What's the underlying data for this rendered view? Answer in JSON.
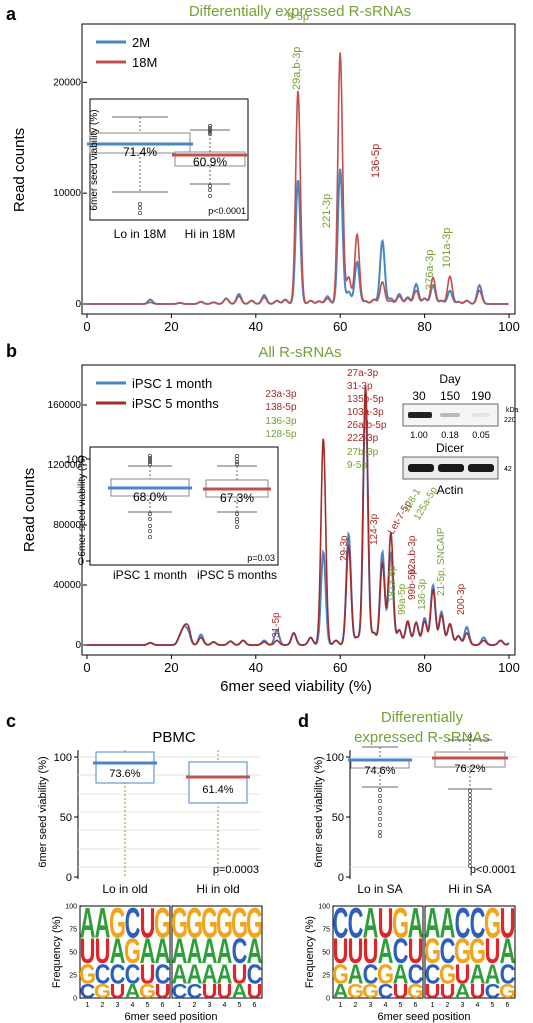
{
  "colors": {
    "blue": "#4a86c5",
    "red": "#c0504d",
    "darkred": "#a52a2a",
    "green": "#77a032",
    "grid": "#dddddd",
    "axis": "#000000",
    "logo_A": "#2e9e3b",
    "logo_C": "#2b5fbf",
    "logo_G": "#f2a51a",
    "logo_U": "#e0242a"
  },
  "panels": {
    "a": {
      "letter": "a",
      "title": "Differentially expressed R-sRNAs",
      "ylabel": "Read counts"
    },
    "b": {
      "letter": "b",
      "title": "All R-sRNAs",
      "ylabel": "Read counts",
      "xlabel": "6mer seed viability (%)"
    },
    "c": {
      "letter": "c",
      "title": "PBMC",
      "ylabel": "6mer seed viability (%)",
      "logo_ylabel": "Frequency (%)",
      "logo_xlabel": "6mer seed position"
    },
    "d": {
      "letter": "d",
      "title_line1": "Differentially",
      "title_line2": "expressed R-sRNAs",
      "ylabel": "6mer seed viability (%)",
      "logo_ylabel": "Frequency (%)",
      "logo_xlabel": "6mer seed position"
    }
  },
  "western": {
    "day_label": "Day",
    "days": [
      "30",
      "150",
      "190"
    ],
    "kda_label": "kDa",
    "marker_dicer": "220",
    "marker_actin": "42",
    "quant": [
      "1.00",
      "0.18",
      "0.05"
    ],
    "dicer_label": "Dicer",
    "actin_label": "Actin"
  },
  "chart_data": [
    {
      "id": "a-main",
      "type": "line",
      "title": "Differentially expressed R-sRNAs",
      "xlabel": "",
      "ylabel": "Read counts",
      "xlim": [
        0,
        100
      ],
      "ylim": [
        0,
        24000
      ],
      "xticks": [
        "0",
        "20",
        "40",
        "60",
        "80",
        "100"
      ],
      "yticks": [
        "0",
        "10000",
        "20000"
      ],
      "legend_position": "top-left",
      "series": [
        {
          "name": "2M",
          "color": "#4a86c5",
          "peaks": [
            [
              15,
              400
            ],
            [
              22,
              100
            ],
            [
              27,
              200
            ],
            [
              30,
              150
            ],
            [
              33,
              500
            ],
            [
              36,
              900
            ],
            [
              39,
              300
            ],
            [
              42,
              800
            ],
            [
              45,
              300
            ],
            [
              47,
              400
            ],
            [
              50,
              11200
            ],
            [
              53,
              300
            ],
            [
              55,
              250
            ],
            [
              57,
              700
            ],
            [
              60,
              12200
            ],
            [
              62,
              1100
            ],
            [
              64,
              3800
            ],
            [
              66,
              250
            ],
            [
              68,
              400
            ],
            [
              70,
              5700
            ],
            [
              72,
              500
            ],
            [
              74,
              900
            ],
            [
              76,
              600
            ],
            [
              78,
              1800
            ],
            [
              80,
              500
            ],
            [
              82,
              1700
            ],
            [
              84,
              300
            ],
            [
              86,
              1200
            ],
            [
              88,
              200
            ],
            [
              90,
              300
            ],
            [
              93,
              1700
            ]
          ]
        },
        {
          "name": "18M",
          "color": "#c0504d",
          "peaks": [
            [
              15,
              150
            ],
            [
              22,
              100
            ],
            [
              27,
              200
            ],
            [
              30,
              150
            ],
            [
              33,
              500
            ],
            [
              36,
              700
            ],
            [
              39,
              300
            ],
            [
              42,
              600
            ],
            [
              45,
              300
            ],
            [
              47,
              350
            ],
            [
              50,
              19300
            ],
            [
              53,
              300
            ],
            [
              55,
              250
            ],
            [
              57,
              500
            ],
            [
              60,
              22700
            ],
            [
              62,
              2400
            ],
            [
              64,
              6300
            ],
            [
              66,
              250
            ],
            [
              68,
              400
            ],
            [
              70,
              2000
            ],
            [
              72,
              300
            ],
            [
              74,
              700
            ],
            [
              76,
              500
            ],
            [
              78,
              1200
            ],
            [
              80,
              500
            ],
            [
              82,
              2400
            ],
            [
              84,
              300
            ],
            [
              86,
              2500
            ],
            [
              88,
              200
            ],
            [
              90,
              300
            ],
            [
              93,
              1200
            ]
          ]
        }
      ],
      "annotations": [
        {
          "text": "29a,b-3p",
          "x": 50,
          "color": "green"
        },
        {
          "text": "9-5p",
          "x": 60,
          "color": "green"
        },
        {
          "text": "221-3p",
          "x": 64,
          "color": "green"
        },
        {
          "text": "136-5p",
          "x": 70,
          "color": "darkred"
        },
        {
          "text": "376a-3p",
          "x": 82,
          "color": "green"
        },
        {
          "text": "101a-3p",
          "x": 86,
          "color": "green"
        }
      ]
    },
    {
      "id": "a-inset",
      "type": "box",
      "ylabel": "6mer seed viability (%)",
      "categories": [
        "Lo in 18M",
        "Hi in 18M"
      ],
      "means": [
        71.4,
        60.9
      ],
      "mean_labels": [
        "71.4%",
        "60.9%"
      ],
      "mean_colors": [
        "#4a86c5",
        "#c0504d"
      ],
      "pvalue": "p<0.0001"
    },
    {
      "id": "b-main",
      "type": "line",
      "title": "All R-sRNAs",
      "xlabel": "6mer seed viability (%)",
      "ylabel": "Read counts",
      "xlim": [
        0,
        100
      ],
      "ylim": [
        0,
        180000
      ],
      "xticks": [
        "0",
        "20",
        "40",
        "60",
        "80",
        "100"
      ],
      "yticks": [
        "0",
        "40000",
        "80000",
        "120000",
        "160000"
      ],
      "legend_position": "top-left",
      "series": [
        {
          "name": "iPSC 1 month",
          "color": "#4a86c5",
          "peaks": [
            [
              15,
              1500
            ],
            [
              22,
              5000
            ],
            [
              23,
              10000
            ],
            [
              24,
              8000
            ],
            [
              27,
              7000
            ],
            [
              30,
              2000
            ],
            [
              34,
              2500
            ],
            [
              37,
              3000
            ],
            [
              42,
              3000
            ],
            [
              45,
              10000
            ],
            [
              49,
              8000
            ],
            [
              53,
              5000
            ],
            [
              56,
              62000
            ],
            [
              59,
              3000
            ],
            [
              62,
              74000
            ],
            [
              64,
              5000
            ],
            [
              66,
              165000
            ],
            [
              68,
              8000
            ],
            [
              70,
              62000
            ],
            [
              72,
              62000
            ],
            [
              74,
              10000
            ],
            [
              76,
              15000
            ],
            [
              78,
              15000
            ],
            [
              80,
              18000
            ],
            [
              82,
              40000
            ],
            [
              84,
              22000
            ],
            [
              86,
              14000
            ],
            [
              88,
              6000
            ],
            [
              90,
              12000
            ],
            [
              94,
              5000
            ],
            [
              98,
              3000
            ],
            [
              101,
              12000
            ]
          ]
        },
        {
          "name": "iPSC 5 months",
          "color": "#a52a2a",
          "peaks": [
            [
              15,
              1500
            ],
            [
              22,
              5000
            ],
            [
              23,
              10000
            ],
            [
              24,
              11000
            ],
            [
              27,
              5000
            ],
            [
              30,
              2000
            ],
            [
              34,
              2500
            ],
            [
              37,
              3000
            ],
            [
              42,
              2000
            ],
            [
              45,
              3000
            ],
            [
              49,
              8000
            ],
            [
              53,
              5000
            ],
            [
              56,
              138000
            ],
            [
              59,
              3000
            ],
            [
              62,
              66000
            ],
            [
              64,
              5000
            ],
            [
              66,
              173000
            ],
            [
              68,
              8000
            ],
            [
              70,
              55000
            ],
            [
              72,
              75000
            ],
            [
              74,
              10000
            ],
            [
              76,
              16000
            ],
            [
              78,
              15000
            ],
            [
              80,
              16000
            ],
            [
              82,
              37000
            ],
            [
              84,
              20000
            ],
            [
              86,
              14000
            ],
            [
              88,
              6000
            ],
            [
              90,
              8000
            ],
            [
              94,
              3000
            ],
            [
              98,
              3000
            ],
            [
              101,
              8000
            ]
          ]
        }
      ],
      "annotations": [
        {
          "text": "31-5p",
          "x": 45,
          "color": "darkred"
        },
        {
          "text": "23a-3p",
          "x": 56,
          "color": "darkred"
        },
        {
          "text": "138-5p",
          "x": 56,
          "color": "darkred"
        },
        {
          "text": "136-3p",
          "x": 56,
          "color": "green"
        },
        {
          "text": "128-5p",
          "x": 56,
          "color": "green"
        },
        {
          "text": "29-3p",
          "x": 62,
          "color": "darkred"
        },
        {
          "text": "27a-3p",
          "x": 66,
          "color": "darkred"
        },
        {
          "text": "31-3p",
          "x": 66,
          "color": "darkred"
        },
        {
          "text": "135b-5p",
          "x": 66,
          "color": "darkred"
        },
        {
          "text": "103a-3p",
          "x": 66,
          "color": "darkred"
        },
        {
          "text": "26a,b-5p",
          "x": 66,
          "color": "darkred"
        },
        {
          "text": "222-3p",
          "x": 66,
          "color": "darkred"
        },
        {
          "text": "27b-3p",
          "x": 66,
          "color": "green"
        },
        {
          "text": "9-5p",
          "x": 66,
          "color": "green"
        },
        {
          "text": "124-3p",
          "x": 70,
          "color": "darkred"
        },
        {
          "text": "Let-7-5p",
          "x": 74,
          "color": "darkred"
        },
        {
          "text": "128-1",
          "x": 79,
          "color": "green"
        },
        {
          "text": "125a-5p",
          "x": 81,
          "color": "green"
        },
        {
          "text": "181a-5p",
          "x": 74,
          "color": "green"
        },
        {
          "text": "99a-5p",
          "x": 76,
          "color": "green"
        },
        {
          "text": "99b-5p",
          "x": 78,
          "color": "darkred"
        },
        {
          "text": "136-3p",
          "x": 79,
          "color": "green"
        },
        {
          "text": "92a,b-3p",
          "x": 81,
          "color": "darkred"
        },
        {
          "text": "21-5p, SNCAIP",
          "x": 84,
          "color": "green"
        },
        {
          "text": "200-3p",
          "x": 89,
          "color": "darkred"
        }
      ]
    },
    {
      "id": "b-inset",
      "type": "box",
      "ylabel": "6mer seed viability (%)",
      "categories": [
        "iPSC 1 month",
        "iPSC 5 months"
      ],
      "means": [
        68.0,
        67.3
      ],
      "mean_labels": [
        "68.0%",
        "67.3%"
      ],
      "mean_colors": [
        "#4a86c5",
        "#c0504d"
      ],
      "yticks": [
        "0",
        "100"
      ],
      "pvalue": "p=0.03"
    },
    {
      "id": "c-box",
      "type": "box",
      "title": "PBMC",
      "ylabel": "6mer seed viability (%)",
      "categories": [
        "Lo in old",
        "Hi in old"
      ],
      "ylim": [
        0,
        100
      ],
      "yticks": [
        "0",
        "50",
        "100"
      ],
      "means": [
        73.6,
        61.4
      ],
      "mean_labels": [
        "73.6%",
        "61.4%"
      ],
      "mean_colors": [
        "#4a86c5",
        "#c0504d"
      ],
      "pvalue": "p=0.0003"
    },
    {
      "id": "d-box",
      "type": "box",
      "title": "Differentially expressed R-sRNAs",
      "ylabel": "6mer seed viability (%)",
      "categories": [
        "Lo in SA",
        "Hi in SA"
      ],
      "ylim": [
        0,
        100
      ],
      "yticks": [
        "0",
        "50",
        "100"
      ],
      "means": [
        74.6,
        76.2
      ],
      "mean_labels": [
        "74.6%",
        "76.2%"
      ],
      "mean_colors": [
        "#4a86c5",
        "#c0504d"
      ],
      "pvalue": "p<0.0001"
    },
    {
      "id": "c-logo",
      "type": "sequence-logo",
      "ylabel": "Frequency (%)",
      "xlabel": "6mer seed position",
      "yticks": [
        "0",
        "25",
        "50",
        "75",
        "100"
      ],
      "xticks": [
        "1",
        "2",
        "3",
        "4",
        "5",
        "6"
      ],
      "logos": [
        {
          "columns": [
            [
              "A",
              "U",
              "G",
              "C"
            ],
            [
              "A",
              "U",
              "C",
              "G"
            ],
            [
              "G",
              "A",
              "C",
              "U"
            ],
            [
              "C",
              "G",
              "C",
              "A"
            ],
            [
              "U",
              "A",
              "U",
              "G"
            ],
            [
              "G",
              "A",
              "C",
              "U"
            ]
          ]
        },
        {
          "columns": [
            [
              "G",
              "A",
              "A",
              "C"
            ],
            [
              "G",
              "A",
              "A",
              "C"
            ],
            [
              "G",
              "A",
              "A",
              "U"
            ],
            [
              "G",
              "A",
              "A",
              "U"
            ],
            [
              "G",
              "C",
              "U",
              "A"
            ],
            [
              "G",
              "A",
              "C",
              "U"
            ]
          ]
        }
      ]
    },
    {
      "id": "d-logo",
      "type": "sequence-logo",
      "ylabel": "Frequency (%)",
      "xlabel": "6mer seed position",
      "yticks": [
        "0",
        "25",
        "50",
        "75",
        "100"
      ],
      "xticks": [
        "1",
        "2",
        "3",
        "4",
        "5",
        "6"
      ],
      "logos": [
        {
          "columns": [
            [
              "C",
              "U",
              "G",
              "A"
            ],
            [
              "C",
              "U",
              "A",
              "G"
            ],
            [
              "A",
              "U",
              "C",
              "G"
            ],
            [
              "U",
              "A",
              "G",
              "C"
            ],
            [
              "G",
              "C",
              "A",
              "U"
            ],
            [
              "A",
              "U",
              "C",
              "G"
            ]
          ]
        },
        {
          "columns": [
            [
              "A",
              "G",
              "C",
              "U"
            ],
            [
              "A",
              "C",
              "G",
              "U"
            ],
            [
              "C",
              "G",
              "U",
              "A"
            ],
            [
              "C",
              "G",
              "A",
              "U"
            ],
            [
              "G",
              "U",
              "A",
              "C"
            ],
            [
              "U",
              "A",
              "C",
              "G"
            ]
          ]
        }
      ]
    }
  ]
}
